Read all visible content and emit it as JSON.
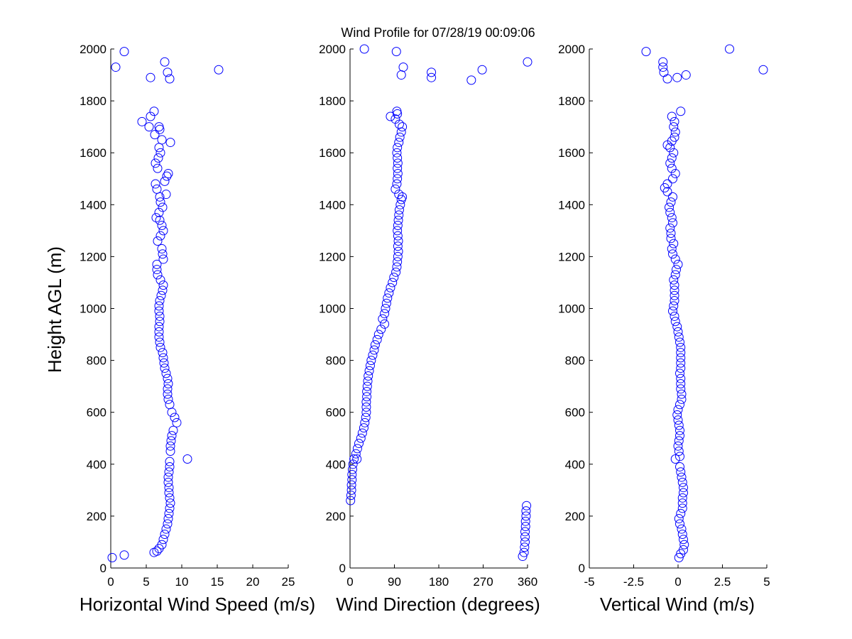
{
  "title": "Wind Profile for  07/28/19 00:09:06",
  "ylabel": "Height AGL (m)",
  "colors": {
    "marker": "#0000ff",
    "axis": "#000000",
    "background": "#ffffff"
  },
  "chart_data": [
    {
      "type": "scatter",
      "xlabel": "Horizontal Wind Speed (m/s)",
      "ylabel": "Height AGL (m)",
      "xlim": [
        0,
        25
      ],
      "ylim": [
        0,
        2000
      ],
      "xticks": [
        "0",
        "5",
        "10",
        "15",
        "20",
        "25"
      ],
      "xtick_values": [
        0,
        5,
        10,
        15,
        20,
        25
      ],
      "yticks": [
        "0",
        "200",
        "400",
        "600",
        "800",
        "1000",
        "1200",
        "1400",
        "1600",
        "1800",
        "2000"
      ],
      "ytick_values": [
        0,
        200,
        400,
        600,
        800,
        1000,
        1200,
        1400,
        1600,
        1800,
        2000
      ],
      "grid": false,
      "marker": "open-circle",
      "points": [
        [
          0.2,
          40
        ],
        [
          1.9,
          50
        ],
        [
          6.1,
          60
        ],
        [
          6.5,
          65
        ],
        [
          6.8,
          75
        ],
        [
          7.2,
          90
        ],
        [
          7.4,
          110
        ],
        [
          7.6,
          130
        ],
        [
          7.8,
          150
        ],
        [
          8.0,
          170
        ],
        [
          8.1,
          190
        ],
        [
          8.2,
          210
        ],
        [
          8.3,
          230
        ],
        [
          8.4,
          250
        ],
        [
          8.3,
          270
        ],
        [
          8.2,
          290
        ],
        [
          8.2,
          310
        ],
        [
          8.1,
          330
        ],
        [
          8.1,
          350
        ],
        [
          8.2,
          370
        ],
        [
          8.3,
          390
        ],
        [
          8.3,
          410
        ],
        [
          10.8,
          420
        ],
        [
          8.4,
          450
        ],
        [
          8.4,
          470
        ],
        [
          8.5,
          490
        ],
        [
          8.6,
          510
        ],
        [
          8.8,
          530
        ],
        [
          9.3,
          560
        ],
        [
          9.0,
          580
        ],
        [
          8.6,
          600
        ],
        [
          8.3,
          630
        ],
        [
          8.1,
          650
        ],
        [
          8.0,
          670
        ],
        [
          8.0,
          690
        ],
        [
          8.1,
          710
        ],
        [
          8.0,
          730
        ],
        [
          7.8,
          750
        ],
        [
          7.6,
          770
        ],
        [
          7.5,
          790
        ],
        [
          7.4,
          810
        ],
        [
          7.3,
          830
        ],
        [
          7.0,
          850
        ],
        [
          6.9,
          870
        ],
        [
          6.8,
          890
        ],
        [
          6.8,
          910
        ],
        [
          6.8,
          930
        ],
        [
          6.9,
          950
        ],
        [
          6.9,
          970
        ],
        [
          6.8,
          990
        ],
        [
          6.8,
          1010
        ],
        [
          6.9,
          1030
        ],
        [
          7.1,
          1050
        ],
        [
          7.3,
          1070
        ],
        [
          7.4,
          1090
        ],
        [
          7.0,
          1110
        ],
        [
          6.6,
          1130
        ],
        [
          6.5,
          1150
        ],
        [
          6.5,
          1170
        ],
        [
          7.4,
          1190
        ],
        [
          7.3,
          1210
        ],
        [
          7.2,
          1230
        ],
        [
          6.6,
          1260
        ],
        [
          7.0,
          1280
        ],
        [
          7.4,
          1300
        ],
        [
          7.2,
          1320
        ],
        [
          6.9,
          1340
        ],
        [
          6.4,
          1350
        ],
        [
          6.8,
          1370
        ],
        [
          7.3,
          1390
        ],
        [
          7.0,
          1410
        ],
        [
          6.9,
          1430
        ],
        [
          7.8,
          1440
        ],
        [
          6.5,
          1460
        ],
        [
          6.3,
          1480
        ],
        [
          7.6,
          1490
        ],
        [
          7.9,
          1510
        ],
        [
          8.1,
          1520
        ],
        [
          6.6,
          1540
        ],
        [
          6.3,
          1560
        ],
        [
          6.7,
          1580
        ],
        [
          7.0,
          1600
        ],
        [
          6.8,
          1620
        ],
        [
          8.4,
          1640
        ],
        [
          7.2,
          1650
        ],
        [
          6.2,
          1670
        ],
        [
          6.9,
          1690
        ],
        [
          6.8,
          1700
        ],
        [
          5.4,
          1700
        ],
        [
          4.4,
          1720
        ],
        [
          5.6,
          1740
        ],
        [
          6.1,
          1760
        ],
        [
          7.6,
          1950
        ],
        [
          8.0,
          1910
        ],
        [
          8.3,
          1885
        ],
        [
          5.6,
          1890
        ],
        [
          0.7,
          1930
        ],
        [
          1.9,
          1990
        ],
        [
          15.2,
          1920
        ]
      ]
    },
    {
      "type": "scatter",
      "xlabel": "Wind Direction (degrees)",
      "ylabel": "",
      "xlim": [
        0,
        360
      ],
      "ylim": [
        0,
        2000
      ],
      "xticks": [
        "0",
        "90",
        "180",
        "270",
        "360"
      ],
      "xtick_values": [
        0,
        90,
        180,
        270,
        360
      ],
      "yticks": [
        "0",
        "200",
        "400",
        "600",
        "800",
        "1000",
        "1200",
        "1400",
        "1600",
        "1800",
        "2000"
      ],
      "ytick_values": [
        0,
        200,
        400,
        600,
        800,
        1000,
        1200,
        1400,
        1600,
        1800,
        2000
      ],
      "grid": false,
      "marker": "open-circle",
      "points": [
        [
          350,
          45
        ],
        [
          353,
          60
        ],
        [
          354,
          80
        ],
        [
          355,
          100
        ],
        [
          355,
          120
        ],
        [
          355,
          140
        ],
        [
          356,
          160
        ],
        [
          356,
          180
        ],
        [
          357,
          200
        ],
        [
          357,
          220
        ],
        [
          358,
          240
        ],
        [
          1,
          260
        ],
        [
          2,
          280
        ],
        [
          3,
          300
        ],
        [
          3,
          320
        ],
        [
          4,
          340
        ],
        [
          4,
          360
        ],
        [
          5,
          380
        ],
        [
          6,
          400
        ],
        [
          8,
          420
        ],
        [
          14,
          420
        ],
        [
          12,
          440
        ],
        [
          15,
          460
        ],
        [
          18,
          480
        ],
        [
          22,
          500
        ],
        [
          25,
          520
        ],
        [
          28,
          540
        ],
        [
          30,
          560
        ],
        [
          32,
          580
        ],
        [
          33,
          600
        ],
        [
          33,
          620
        ],
        [
          33,
          640
        ],
        [
          34,
          660
        ],
        [
          34,
          680
        ],
        [
          35,
          700
        ],
        [
          36,
          720
        ],
        [
          37,
          740
        ],
        [
          39,
          760
        ],
        [
          41,
          780
        ],
        [
          43,
          800
        ],
        [
          46,
          820
        ],
        [
          49,
          840
        ],
        [
          51,
          860
        ],
        [
          55,
          880
        ],
        [
          58,
          900
        ],
        [
          63,
          920
        ],
        [
          70,
          940
        ],
        [
          66,
          960
        ],
        [
          70,
          980
        ],
        [
          72,
          1000
        ],
        [
          74,
          1020
        ],
        [
          76,
          1040
        ],
        [
          79,
          1060
        ],
        [
          82,
          1080
        ],
        [
          86,
          1100
        ],
        [
          89,
          1120
        ],
        [
          93,
          1140
        ],
        [
          95,
          1160
        ],
        [
          96,
          1180
        ],
        [
          97,
          1200
        ],
        [
          98,
          1220
        ],
        [
          97,
          1240
        ],
        [
          98,
          1260
        ],
        [
          97,
          1280
        ],
        [
          96,
          1300
        ],
        [
          97,
          1320
        ],
        [
          98,
          1340
        ],
        [
          99,
          1360
        ],
        [
          100,
          1380
        ],
        [
          102,
          1400
        ],
        [
          104,
          1420
        ],
        [
          106,
          1430
        ],
        [
          99,
          1440
        ],
        [
          92,
          1460
        ],
        [
          95,
          1480
        ],
        [
          96,
          1500
        ],
        [
          97,
          1520
        ],
        [
          96,
          1540
        ],
        [
          97,
          1560
        ],
        [
          96,
          1580
        ],
        [
          95,
          1600
        ],
        [
          96,
          1620
        ],
        [
          99,
          1640
        ],
        [
          101,
          1660
        ],
        [
          104,
          1680
        ],
        [
          106,
          1700
        ],
        [
          100,
          1710
        ],
        [
          92,
          1730
        ],
        [
          82,
          1740
        ],
        [
          96,
          1750
        ],
        [
          95,
          1760
        ],
        [
          29,
          2000
        ],
        [
          94,
          1990
        ],
        [
          108,
          1930
        ],
        [
          104,
          1900
        ],
        [
          165,
          1910
        ],
        [
          165,
          1890
        ],
        [
          246,
          1880
        ],
        [
          268,
          1920
        ],
        [
          360,
          1950
        ]
      ]
    },
    {
      "type": "scatter",
      "xlabel": "Vertical Wind (m/s)",
      "ylabel": "",
      "xlim": [
        -5,
        5
      ],
      "ylim": [
        0,
        2000
      ],
      "xticks": [
        "-5",
        "-2.5",
        "0",
        "2.5",
        "5"
      ],
      "xtick_values": [
        -5,
        -2.5,
        0,
        2.5,
        5
      ],
      "yticks": [
        "0",
        "200",
        "400",
        "600",
        "800",
        "1000",
        "1200",
        "1400",
        "1600",
        "1800",
        "2000"
      ],
      "ytick_values": [
        0,
        200,
        400,
        600,
        800,
        1000,
        1200,
        1400,
        1600,
        1800,
        2000
      ],
      "grid": false,
      "marker": "open-circle",
      "points": [
        [
          0.05,
          40
        ],
        [
          0.15,
          55
        ],
        [
          0.3,
          70
        ],
        [
          0.35,
          90
        ],
        [
          0.3,
          110
        ],
        [
          0.25,
          130
        ],
        [
          0.2,
          150
        ],
        [
          0.1,
          170
        ],
        [
          0.05,
          190
        ],
        [
          0.15,
          210
        ],
        [
          0.25,
          230
        ],
        [
          0.25,
          250
        ],
        [
          0.25,
          270
        ],
        [
          0.3,
          290
        ],
        [
          0.3,
          310
        ],
        [
          0.25,
          330
        ],
        [
          0.2,
          350
        ],
        [
          0.15,
          370
        ],
        [
          0.1,
          390
        ],
        [
          -0.15,
          420
        ],
        [
          0.1,
          430
        ],
        [
          0.05,
          450
        ],
        [
          0.0,
          470
        ],
        [
          0.05,
          490
        ],
        [
          0.1,
          510
        ],
        [
          0.1,
          530
        ],
        [
          0.05,
          550
        ],
        [
          0.0,
          570
        ],
        [
          -0.05,
          590
        ],
        [
          0.0,
          610
        ],
        [
          0.1,
          630
        ],
        [
          0.2,
          650
        ],
        [
          0.2,
          670
        ],
        [
          0.15,
          690
        ],
        [
          0.15,
          710
        ],
        [
          0.15,
          730
        ],
        [
          0.1,
          750
        ],
        [
          0.15,
          770
        ],
        [
          0.15,
          790
        ],
        [
          0.15,
          810
        ],
        [
          0.15,
          830
        ],
        [
          0.15,
          850
        ],
        [
          0.1,
          870
        ],
        [
          0.05,
          890
        ],
        [
          0.0,
          910
        ],
        [
          -0.05,
          930
        ],
        [
          -0.15,
          950
        ],
        [
          -0.2,
          970
        ],
        [
          -0.3,
          990
        ],
        [
          -0.25,
          1010
        ],
        [
          -0.2,
          1030
        ],
        [
          -0.2,
          1050
        ],
        [
          -0.2,
          1070
        ],
        [
          -0.2,
          1090
        ],
        [
          -0.25,
          1110
        ],
        [
          -0.15,
          1130
        ],
        [
          -0.1,
          1150
        ],
        [
          0.0,
          1170
        ],
        [
          -0.15,
          1190
        ],
        [
          -0.3,
          1210
        ],
        [
          -0.35,
          1230
        ],
        [
          -0.25,
          1250
        ],
        [
          -0.4,
          1270
        ],
        [
          -0.4,
          1290
        ],
        [
          -0.45,
          1310
        ],
        [
          -0.3,
          1330
        ],
        [
          -0.35,
          1350
        ],
        [
          -0.45,
          1370
        ],
        [
          -0.5,
          1390
        ],
        [
          -0.4,
          1410
        ],
        [
          -0.3,
          1430
        ],
        [
          -0.6,
          1450
        ],
        [
          -0.75,
          1465
        ],
        [
          -0.6,
          1480
        ],
        [
          -0.3,
          1500
        ],
        [
          -0.15,
          1520
        ],
        [
          -0.35,
          1540
        ],
        [
          -0.45,
          1560
        ],
        [
          -0.35,
          1580
        ],
        [
          -0.25,
          1600
        ],
        [
          -0.45,
          1620
        ],
        [
          -0.6,
          1630
        ],
        [
          -0.35,
          1645
        ],
        [
          -0.2,
          1660
        ],
        [
          -0.15,
          1680
        ],
        [
          -0.25,
          1700
        ],
        [
          -0.2,
          1720
        ],
        [
          -0.35,
          1740
        ],
        [
          0.15,
          1760
        ],
        [
          -1.8,
          1990
        ],
        [
          -0.85,
          1950
        ],
        [
          -0.85,
          1930
        ],
        [
          -0.8,
          1910
        ],
        [
          -0.6,
          1885
        ],
        [
          -0.05,
          1890
        ],
        [
          0.45,
          1900
        ],
        [
          2.9,
          2000
        ],
        [
          4.8,
          1920
        ]
      ]
    }
  ]
}
